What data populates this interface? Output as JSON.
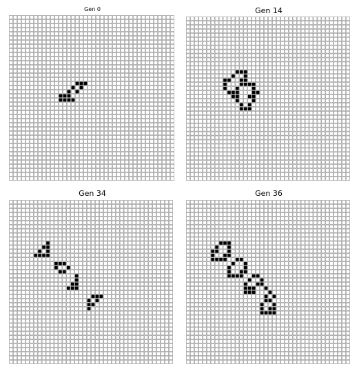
{
  "panels": [
    {
      "title": "Gen 0",
      "rows": 40,
      "cols": 40,
      "live_cells": [
        [
          16,
          16
        ],
        [
          16,
          17
        ],
        [
          16,
          18
        ],
        [
          17,
          15
        ],
        [
          17,
          17
        ],
        [
          18,
          14
        ],
        [
          18,
          16
        ],
        [
          19,
          12
        ],
        [
          19,
          13
        ],
        [
          19,
          14
        ],
        [
          20,
          12
        ],
        [
          20,
          13
        ],
        [
          20,
          14
        ],
        [
          20,
          15
        ]
      ]
    },
    {
      "title": "Gen 14",
      "rows": 40,
      "cols": 40,
      "live_cells": [
        [
          13,
          12
        ],
        [
          13,
          13
        ],
        [
          13,
          14
        ],
        [
          14,
          11
        ],
        [
          14,
          14
        ],
        [
          15,
          9
        ],
        [
          15,
          10
        ],
        [
          15,
          13
        ],
        [
          15,
          14
        ],
        [
          16,
          9
        ],
        [
          16,
          13
        ],
        [
          16,
          14
        ],
        [
          16,
          15
        ],
        [
          16,
          16
        ],
        [
          17,
          9
        ],
        [
          17,
          12
        ],
        [
          17,
          16
        ],
        [
          18,
          10
        ],
        [
          18,
          11
        ],
        [
          18,
          12
        ],
        [
          18,
          16
        ],
        [
          18,
          17
        ],
        [
          19,
          11
        ],
        [
          19,
          12
        ],
        [
          19,
          15
        ],
        [
          19,
          16
        ],
        [
          20,
          12
        ],
        [
          20,
          16
        ],
        [
          21,
          13
        ],
        [
          21,
          15
        ],
        [
          22,
          13
        ],
        [
          22,
          14
        ],
        [
          22,
          15
        ]
      ]
    },
    {
      "title": "Gen 34",
      "rows": 40,
      "cols": 40,
      "live_cells": [
        [
          10,
          9
        ],
        [
          11,
          8
        ],
        [
          11,
          9
        ],
        [
          12,
          7
        ],
        [
          12,
          9
        ],
        [
          13,
          6
        ],
        [
          13,
          7
        ],
        [
          13,
          8
        ],
        [
          13,
          9
        ],
        [
          15,
          11
        ],
        [
          15,
          12
        ],
        [
          15,
          13
        ],
        [
          16,
          11
        ],
        [
          16,
          14
        ],
        [
          17,
          12
        ],
        [
          17,
          13
        ],
        [
          18,
          16
        ],
        [
          19,
          16
        ],
        [
          20,
          15
        ],
        [
          20,
          16
        ],
        [
          21,
          14
        ],
        [
          21,
          15
        ],
        [
          21,
          16
        ],
        [
          23,
          20
        ],
        [
          23,
          21
        ],
        [
          23,
          22
        ],
        [
          24,
          19
        ],
        [
          24,
          21
        ],
        [
          25,
          19
        ],
        [
          25,
          20
        ],
        [
          26,
          19
        ]
      ]
    },
    {
      "title": "Gen 36",
      "rows": 40,
      "cols": 40,
      "live_cells": [
        [
          10,
          8
        ],
        [
          10,
          9
        ],
        [
          10,
          10
        ],
        [
          11,
          7
        ],
        [
          11,
          10
        ],
        [
          12,
          6
        ],
        [
          12,
          7
        ],
        [
          12,
          10
        ],
        [
          13,
          6
        ],
        [
          13,
          9
        ],
        [
          13,
          10
        ],
        [
          14,
          6
        ],
        [
          14,
          7
        ],
        [
          14,
          8
        ],
        [
          14,
          9
        ],
        [
          14,
          12
        ],
        [
          14,
          13
        ],
        [
          15,
          11
        ],
        [
          15,
          14
        ],
        [
          16,
          10
        ],
        [
          16,
          14
        ],
        [
          17,
          10
        ],
        [
          17,
          13
        ],
        [
          17,
          14
        ],
        [
          18,
          10
        ],
        [
          18,
          11
        ],
        [
          18,
          12
        ],
        [
          18,
          13
        ],
        [
          18,
          16
        ],
        [
          18,
          17
        ],
        [
          19,
          15
        ],
        [
          19,
          18
        ],
        [
          20,
          14
        ],
        [
          20,
          17
        ],
        [
          20,
          18
        ],
        [
          21,
          14
        ],
        [
          21,
          15
        ],
        [
          21,
          16
        ],
        [
          21,
          19
        ],
        [
          22,
          14
        ],
        [
          22,
          15
        ],
        [
          22,
          16
        ],
        [
          22,
          20
        ],
        [
          23,
          19
        ],
        [
          23,
          21
        ],
        [
          24,
          19
        ],
        [
          24,
          20
        ],
        [
          25,
          18
        ],
        [
          25,
          21
        ],
        [
          26,
          18
        ],
        [
          26,
          20
        ],
        [
          27,
          18
        ],
        [
          27,
          19
        ],
        [
          27,
          20
        ],
        [
          27,
          21
        ],
        [
          26,
          21
        ]
      ]
    }
  ]
}
